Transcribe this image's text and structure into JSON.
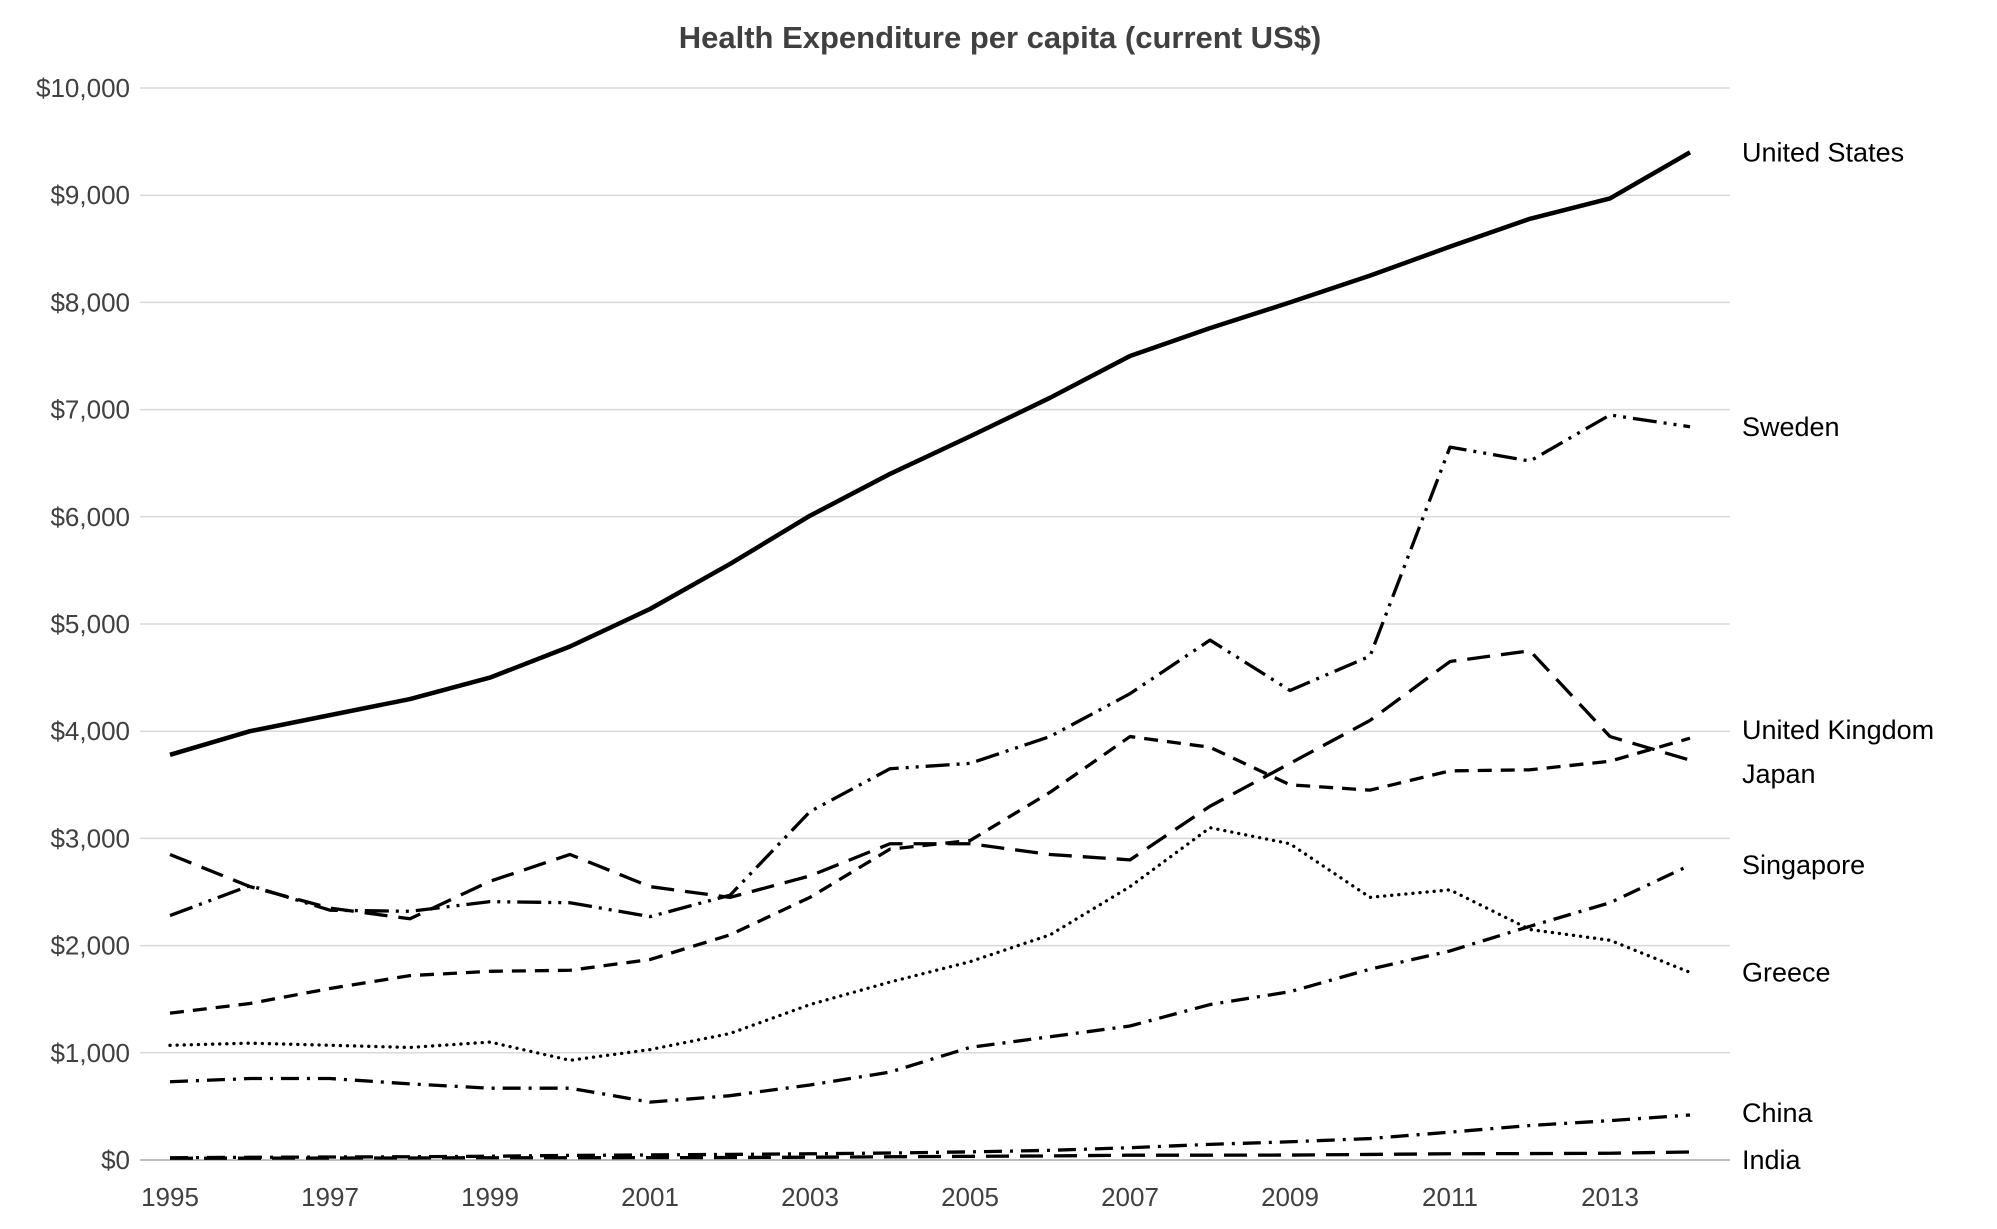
{
  "chart_data": {
    "type": "line",
    "title": "Health Expenditure per capita (current US$)",
    "xlabel": "",
    "ylabel": "",
    "x": [
      1995,
      1996,
      1997,
      1998,
      1999,
      2000,
      2001,
      2002,
      2003,
      2004,
      2005,
      2006,
      2007,
      2008,
      2009,
      2010,
      2011,
      2012,
      2013,
      2014
    ],
    "x_tick_labels": [
      "1995",
      "1997",
      "1999",
      "2001",
      "2003",
      "2005",
      "2007",
      "2009",
      "2011",
      "2013"
    ],
    "y_tick_labels": [
      "$0",
      "$1,000",
      "$2,000",
      "$3,000",
      "$4,000",
      "$5,000",
      "$6,000",
      "$7,000",
      "$8,000",
      "$9,000",
      "$10,000"
    ],
    "ylim": [
      0,
      10000
    ],
    "grid": "horizontal",
    "legend_position": "labels-at-line-ends-right",
    "series": [
      {
        "name": "United States",
        "line_style": "solid",
        "values": [
          3780,
          4000,
          4150,
          4300,
          4500,
          4790,
          5140,
          5560,
          6010,
          6400,
          6750,
          7110,
          7500,
          7760,
          8000,
          8250,
          8520,
          8780,
          8970,
          9400
        ]
      },
      {
        "name": "Sweden",
        "line_style": "dash-dot-dot",
        "values": [
          2280,
          2560,
          2330,
          2320,
          2410,
          2400,
          2270,
          2470,
          3250,
          3650,
          3700,
          3950,
          4350,
          4850,
          4380,
          4700,
          6650,
          6520,
          6950,
          6840
        ]
      },
      {
        "name": "United Kingdom",
        "line_style": "dashed",
        "values": [
          1370,
          1460,
          1600,
          1720,
          1760,
          1770,
          1870,
          2100,
          2450,
          2900,
          2980,
          3430,
          3950,
          3850,
          3500,
          3450,
          3630,
          3640,
          3720,
          3935
        ]
      },
      {
        "name": "Japan",
        "line_style": "long-dash",
        "values": [
          2850,
          2550,
          2350,
          2250,
          2600,
          2850,
          2550,
          2450,
          2650,
          2950,
          2950,
          2850,
          2800,
          3300,
          3700,
          4100,
          4650,
          4750,
          3950,
          3730
        ]
      },
      {
        "name": "Singapore",
        "line_style": "dash-dot",
        "values": [
          730,
          760,
          760,
          710,
          670,
          670,
          540,
          600,
          700,
          820,
          1050,
          1150,
          1250,
          1450,
          1570,
          1780,
          1950,
          2180,
          2400,
          2750
        ]
      },
      {
        "name": "Greece",
        "line_style": "dotted",
        "values": [
          1070,
          1090,
          1070,
          1050,
          1100,
          930,
          1030,
          1180,
          1450,
          1660,
          1850,
          2100,
          2550,
          3100,
          2950,
          2450,
          2520,
          2150,
          2050,
          1750
        ]
      },
      {
        "name": "China",
        "line_style": "dash-dot",
        "values": [
          21,
          25,
          28,
          30,
          35,
          43,
          47,
          52,
          58,
          65,
          76,
          90,
          115,
          146,
          170,
          200,
          260,
          322,
          367,
          420
        ]
      },
      {
        "name": "India",
        "line_style": "long-dash",
        "values": [
          16,
          17,
          18,
          19,
          21,
          21,
          22,
          23,
          26,
          30,
          34,
          38,
          45,
          45,
          46,
          52,
          58,
          60,
          63,
          75
        ]
      }
    ]
  },
  "colors": {
    "line": "#000000",
    "grid": "#d9d9d9",
    "axis": "#a6a6a6",
    "title": "#404040",
    "tick": "#404040",
    "label": "#000000",
    "background": "#ffffff"
  }
}
